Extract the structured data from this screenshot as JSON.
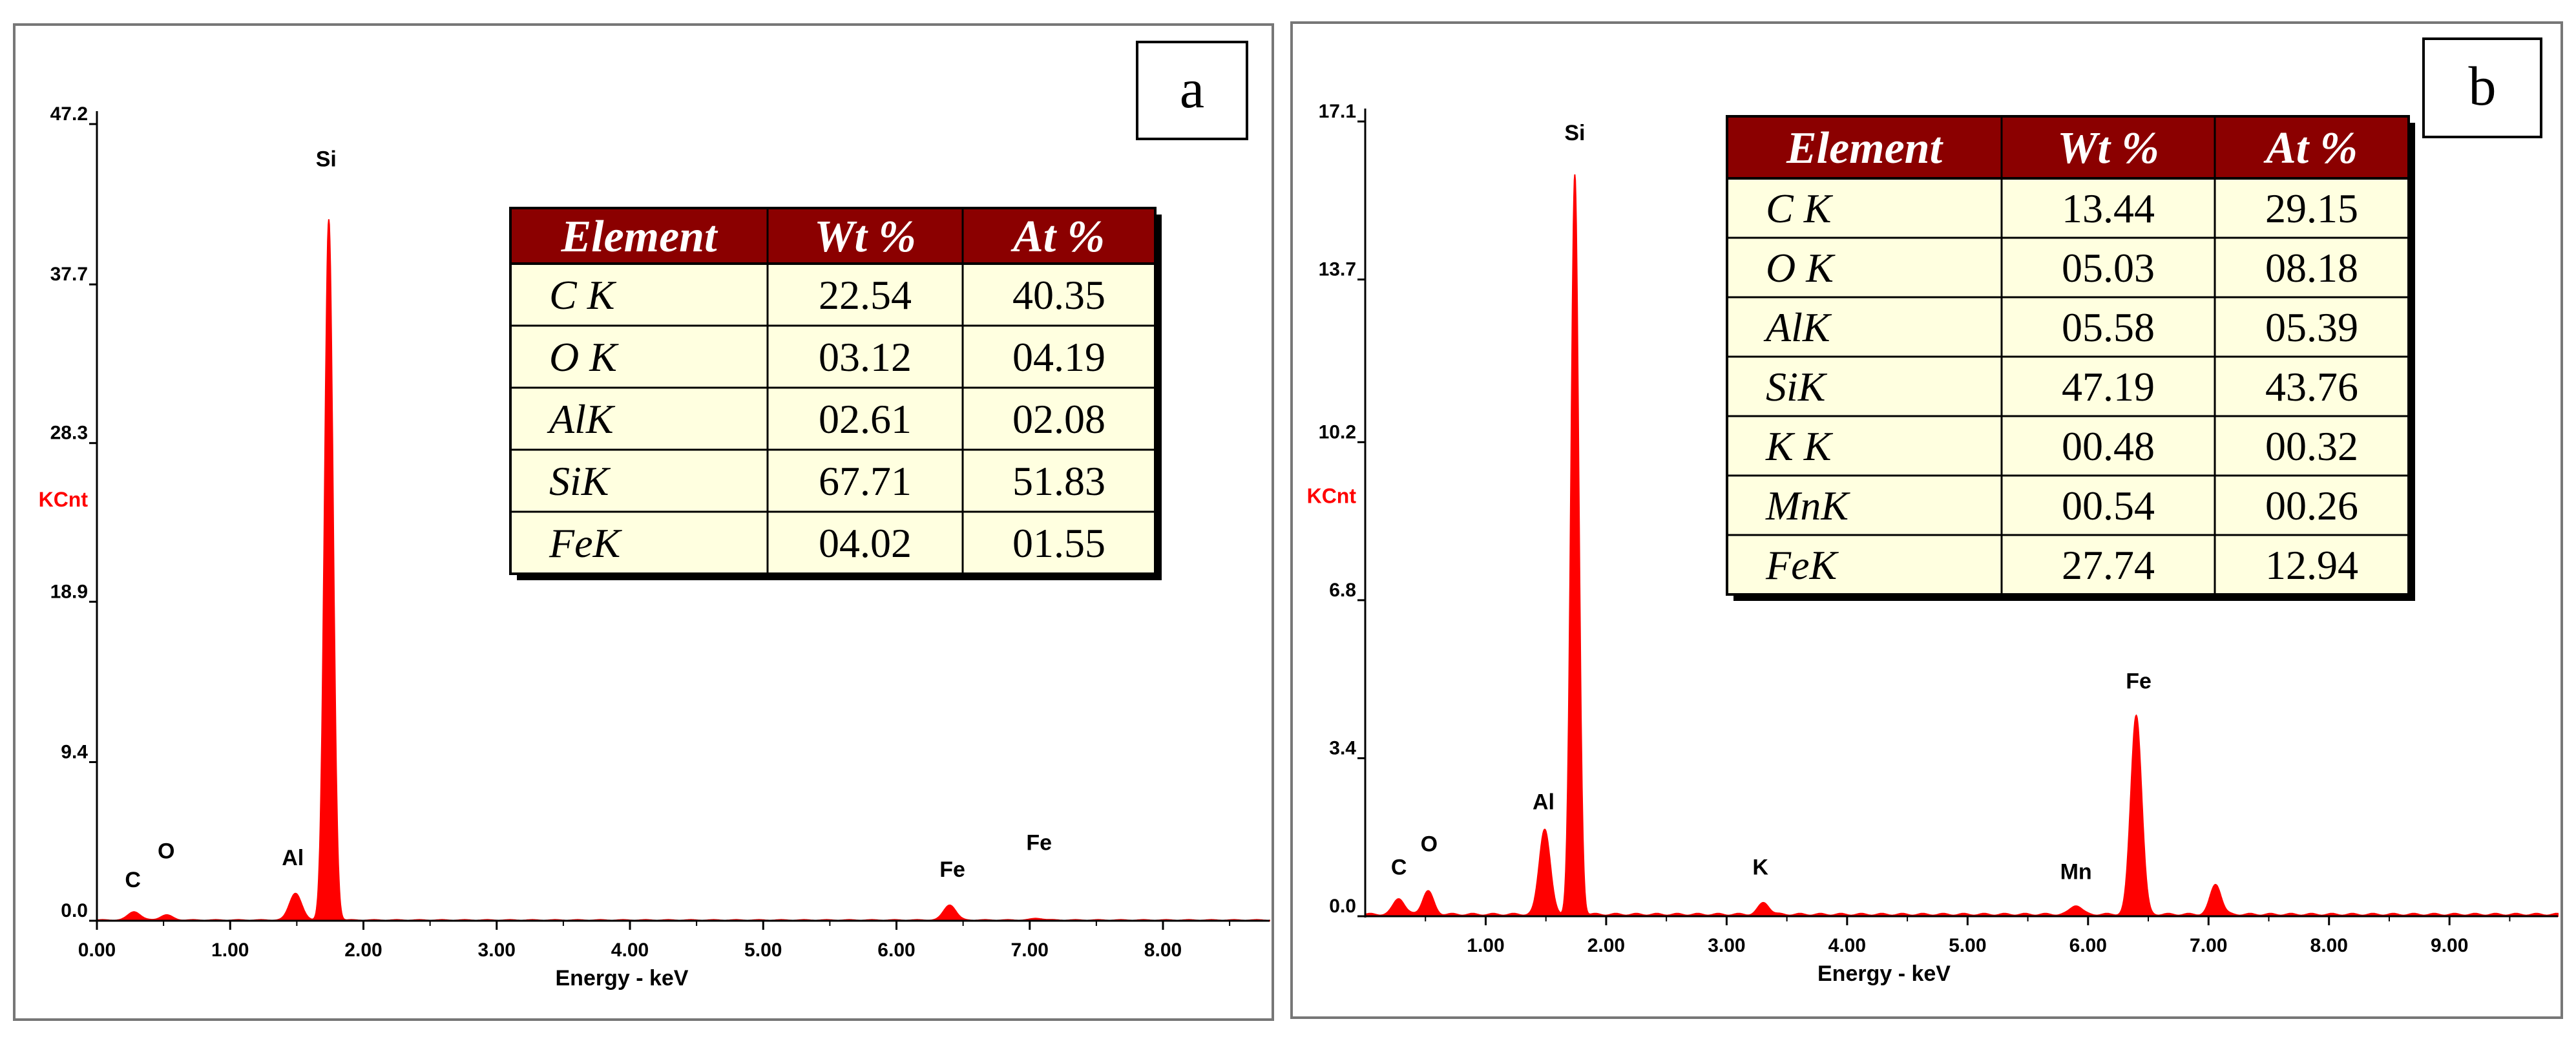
{
  "chart_data": [
    {
      "type": "area",
      "panel_label": "a",
      "xlabel": "Energy - keV",
      "ylabel": "KCnt",
      "xlim": [
        0,
        8.8
      ],
      "ylim": [
        0,
        47.2
      ],
      "x_ticks": [
        "0.00",
        "1.00",
        "2.00",
        "3.00",
        "4.00",
        "5.00",
        "6.00",
        "7.00",
        "8.00"
      ],
      "y_ticks": [
        "0.0",
        "9.4",
        "18.9",
        "28.3",
        "37.7",
        "47.2"
      ],
      "series_color": "#ff0000",
      "peaks": [
        {
          "element": "C",
          "energy": 0.28,
          "height": 0.5
        },
        {
          "element": "O",
          "energy": 0.52,
          "height": 0.3
        },
        {
          "element": "Al",
          "energy": 1.49,
          "height": 1.6
        },
        {
          "element": "Si",
          "energy": 1.74,
          "height": 41.5
        },
        {
          "element": "Fe",
          "energy": 6.4,
          "height": 0.9
        },
        {
          "element": "Fe",
          "energy": 7.06,
          "height": 0.1
        }
      ],
      "peak_labels": [
        {
          "text": "C",
          "x": 0.27,
          "y": 2.0
        },
        {
          "text": "O",
          "x": 0.52,
          "y": 3.7
        },
        {
          "text": "Al",
          "x": 1.47,
          "y": 3.3
        },
        {
          "text": "Si",
          "x": 1.72,
          "y": 44.7
        },
        {
          "text": "Fe",
          "x": 6.42,
          "y": 2.6
        },
        {
          "text": "Fe",
          "x": 7.07,
          "y": 4.2
        }
      ],
      "table": {
        "headers": [
          "Element",
          "Wt %",
          "At %"
        ],
        "rows": [
          [
            "C K",
            "22.54",
            "40.35"
          ],
          [
            "O K",
            "03.12",
            "04.19"
          ],
          [
            "AlK",
            "02.61",
            "02.08"
          ],
          [
            "SiK",
            "67.71",
            "51.83"
          ],
          [
            "FeK",
            "04.02",
            "01.55"
          ]
        ]
      }
    },
    {
      "type": "area",
      "panel_label": "b",
      "xlabel": "Energy - keV",
      "ylabel": "KCnt",
      "xlim": [
        0,
        9.9
      ],
      "ylim": [
        0,
        17.1
      ],
      "x_ticks": [
        "1.00",
        "2.00",
        "3.00",
        "4.00",
        "5.00",
        "6.00",
        "7.00",
        "8.00",
        "9.00"
      ],
      "y_ticks": [
        "0.0",
        "3.4",
        "6.8",
        "10.2",
        "13.7",
        "17.1"
      ],
      "series_color": "#ff0000",
      "peaks": [
        {
          "element": "C",
          "energy": 0.28,
          "height": 0.35
        },
        {
          "element": "O",
          "energy": 0.52,
          "height": 0.5
        },
        {
          "element": "Al",
          "energy": 1.49,
          "height": 1.85
        },
        {
          "element": "Si",
          "energy": 1.74,
          "height": 15.9
        },
        {
          "element": "K",
          "energy": 3.31,
          "height": 0.25
        },
        {
          "element": "Mn",
          "energy": 5.9,
          "height": 0.2
        },
        {
          "element": "Fe",
          "energy": 6.4,
          "height": 4.3
        },
        {
          "element": "Fe",
          "energy": 7.06,
          "height": 0.65
        }
      ],
      "peak_labels": [
        {
          "text": "C",
          "x": 0.28,
          "y": 0.9
        },
        {
          "text": "O",
          "x": 0.53,
          "y": 1.4
        },
        {
          "text": "Al",
          "x": 1.48,
          "y": 2.3
        },
        {
          "text": "Si",
          "x": 1.74,
          "y": 16.7
        },
        {
          "text": "K",
          "x": 3.28,
          "y": 0.9
        },
        {
          "text": "Mn",
          "x": 5.9,
          "y": 0.8
        },
        {
          "text": "Fe",
          "x": 6.42,
          "y": 4.9
        }
      ],
      "table": {
        "headers": [
          "Element",
          "Wt %",
          "At %"
        ],
        "rows": [
          [
            "C K",
            "13.44",
            "29.15"
          ],
          [
            "O K",
            "05.03",
            "08.18"
          ],
          [
            "AlK",
            "05.58",
            "05.39"
          ],
          [
            "SiK",
            "47.19",
            "43.76"
          ],
          [
            "K K",
            "00.48",
            "00.32"
          ],
          [
            "MnK",
            "00.54",
            "00.26"
          ],
          [
            "FeK",
            "27.74",
            "12.94"
          ]
        ]
      }
    }
  ]
}
